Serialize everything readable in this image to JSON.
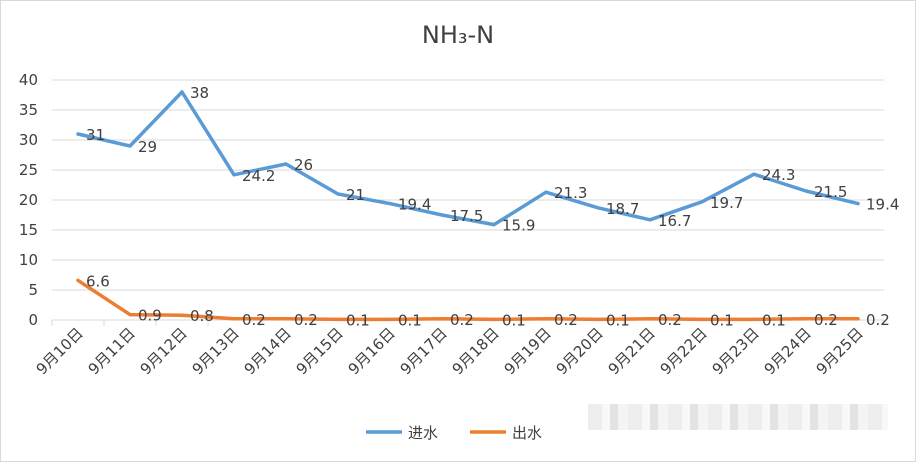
{
  "chart_data": {
    "type": "line",
    "title": "NH₃-N",
    "categories": [
      "9月10日",
      "9月11日",
      "9月12日",
      "9月13日",
      "9月14日",
      "9月15日",
      "9月16日",
      "9月17日",
      "9月18日",
      "9月19日",
      "9月20日",
      "9月21日",
      "9月22日",
      "9月23日",
      "9月24日",
      "9月25日"
    ],
    "ylim": [
      0,
      40
    ],
    "yticks": [
      0,
      5,
      10,
      15,
      20,
      25,
      30,
      35,
      40
    ],
    "grid": true,
    "legend_position": "bottom",
    "series": [
      {
        "name": "进水",
        "color": "#5b9bd5",
        "values": [
          31,
          29,
          38,
          24.2,
          26,
          21,
          19.4,
          17.5,
          15.9,
          21.3,
          18.7,
          16.7,
          19.7,
          24.3,
          21.5,
          19.4
        ],
        "labels": [
          "31",
          "29",
          "38",
          "24.2",
          "26",
          "21",
          "19.4",
          "17.5",
          "15.9",
          "21.3",
          "18.7",
          "16.7",
          "19.7",
          "24.3",
          "21.5",
          "19.4"
        ],
        "label_indices": [
          0,
          1,
          2,
          3,
          4,
          5,
          6,
          7,
          8,
          9,
          10,
          11,
          12,
          13,
          14,
          15
        ]
      },
      {
        "name": "出水",
        "color": "#ed7d31",
        "values": [
          6.6,
          0.9,
          0.8,
          0.2,
          0.2,
          0.1,
          0.1,
          0.2,
          0.1,
          0.2,
          0.1,
          0.2,
          0.1,
          0.1,
          0.2,
          0.2
        ],
        "labels": [
          "6.6",
          "0.9",
          "0.8",
          "0.2",
          "0.2",
          "0.1",
          "0.1",
          "0.2",
          "0.1",
          "0.2",
          "0.1",
          "0.2",
          "0.1",
          "0.1",
          "0.2",
          "0.2"
        ],
        "label_indices": [
          0,
          1,
          2,
          3,
          4,
          5,
          6,
          7,
          8,
          9,
          10,
          11,
          12,
          13,
          14,
          15
        ]
      }
    ],
    "axis_color": "#d9d9d9",
    "text_color": "#404040"
  }
}
